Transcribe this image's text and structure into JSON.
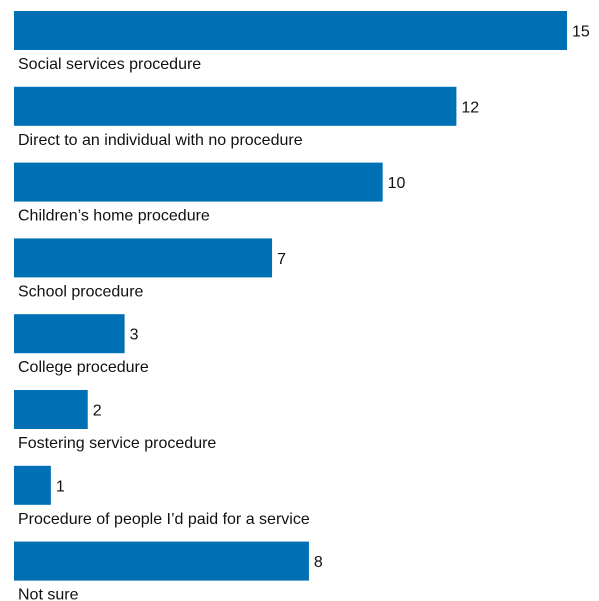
{
  "chart_data": {
    "type": "bar",
    "orientation": "horizontal",
    "categories": [
      "Social services procedure",
      "Direct to an individual with no procedure",
      "Children’s home procedure",
      "School procedure",
      "College procedure",
      "Fostering service procedure",
      "Procedure of people I’d paid for a service",
      "Not sure"
    ],
    "values": [
      15,
      12,
      10,
      7,
      3,
      2,
      1,
      8
    ],
    "title": "",
    "xlabel": "",
    "ylabel": "",
    "xlim": [
      0,
      15
    ],
    "grid": false,
    "legend": "none",
    "bar_color": "#0070b5"
  }
}
